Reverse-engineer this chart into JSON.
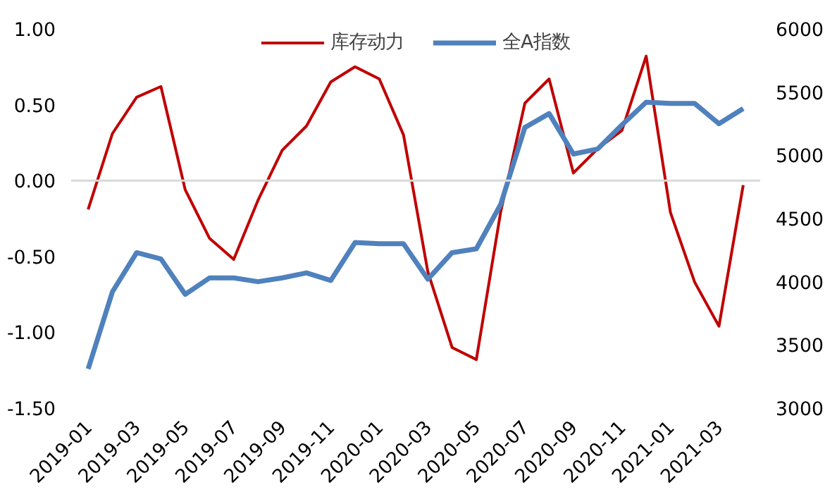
{
  "chart_data": {
    "type": "line",
    "categories": [
      "2019-01",
      null,
      "2019-03",
      null,
      "2019-05",
      null,
      "2019-07",
      null,
      "2019-09",
      null,
      "2019-11",
      null,
      "2020-01",
      null,
      "2020-03",
      null,
      "2020-05",
      null,
      "2020-07",
      null,
      "2020-09",
      null,
      "2020-11",
      null,
      "2021-01",
      null,
      "2021-03",
      null
    ],
    "series": [
      {
        "name": "库存动力",
        "color": "#c00000",
        "values": [
          -0.19,
          0.31,
          0.55,
          0.62,
          -0.06,
          -0.38,
          -0.52,
          -0.13,
          0.2,
          0.36,
          0.65,
          0.75,
          0.67,
          0.3,
          -0.6,
          -1.1,
          -1.18,
          -0.21,
          0.51,
          0.67,
          0.05,
          0.21,
          0.33,
          0.82,
          -0.21,
          -0.67,
          -0.96,
          -0.03
        ]
      },
      {
        "name": "全A指数",
        "color": "#4f81bd",
        "axis": "y2",
        "values": [
          3310,
          3920,
          4230,
          4180,
          3900,
          4030,
          4030,
          4000,
          4030,
          4070,
          4010,
          4310,
          4300,
          4300,
          4020,
          4230,
          4260,
          4610,
          5220,
          5330,
          5010,
          5050,
          5240,
          5420,
          5410,
          5410,
          5250,
          5370
        ]
      }
    ],
    "ylim": [
      -1.5,
      1.0
    ],
    "yticks": [
      {
        "value": -1.5,
        "label": "-1.50"
      },
      {
        "value": -1.0,
        "label": "-1.00"
      },
      {
        "value": -0.5,
        "label": "-0.50"
      },
      {
        "value": 0,
        "label": "0.00"
      },
      {
        "value": 0.5,
        "label": "0.50"
      },
      {
        "value": 1.0,
        "label": "1.00"
      }
    ],
    "y2lim": [
      3000,
      6000
    ],
    "y2ticks": [
      3000,
      3500,
      4000,
      4500,
      5000,
      5500,
      6000
    ],
    "ref_lines": [
      {
        "axis": "y",
        "value": 0,
        "color": "#d9d9d9"
      }
    ],
    "grid": false,
    "legend": "top",
    "marker": "none",
    "line_style": "solid"
  }
}
